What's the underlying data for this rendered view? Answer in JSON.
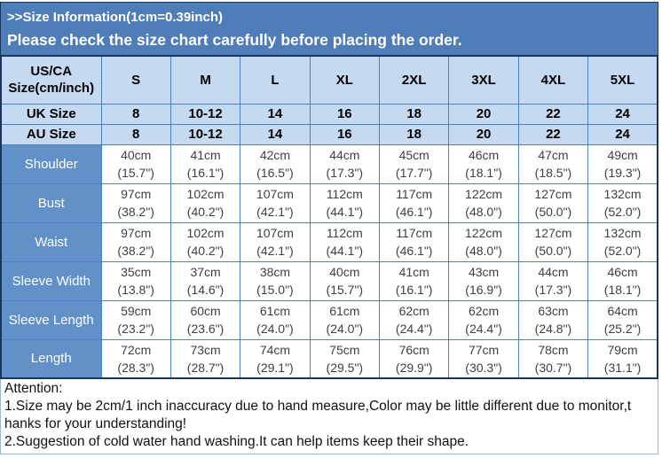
{
  "banner": {
    "line1": ">>Size Information(1cm=0.39inch)",
    "line2": "Please check the size chart carefully before placing the order.",
    "bg_color": "#4e7db7",
    "text_color": "#ffffff"
  },
  "size_table": {
    "corner_line1": "US/CA",
    "corner_line2": "Size(cm/inch)",
    "columns": [
      "S",
      "M",
      "L",
      "XL",
      "2XL",
      "3XL",
      "4XL",
      "5XL"
    ],
    "size_rows": [
      {
        "label": "UK Size",
        "values": [
          "8",
          "10-12",
          "14",
          "16",
          "18",
          "20",
          "22",
          "24"
        ]
      },
      {
        "label": "AU Size",
        "values": [
          "8",
          "10-12",
          "14",
          "16",
          "18",
          "20",
          "22",
          "24"
        ]
      }
    ],
    "measurement_rows": [
      {
        "label": "Shoulder",
        "cells": [
          {
            "cm": "40cm",
            "in": "(15.7\")"
          },
          {
            "cm": "41cm",
            "in": "(16.1\")"
          },
          {
            "cm": "42cm",
            "in": "(16.5\")"
          },
          {
            "cm": "44cm",
            "in": "(17.3\")"
          },
          {
            "cm": "45cm",
            "in": "(17.7\")"
          },
          {
            "cm": "46cm",
            "in": "(18.1\")"
          },
          {
            "cm": "47cm",
            "in": "(18.5\")"
          },
          {
            "cm": "49cm",
            "in": "(19.3\")"
          }
        ]
      },
      {
        "label": "Bust",
        "cells": [
          {
            "cm": "97cm",
            "in": "(38.2\")"
          },
          {
            "cm": "102cm",
            "in": "(40.2\")"
          },
          {
            "cm": "107cm",
            "in": "(42.1\")"
          },
          {
            "cm": "112cm",
            "in": "(44.1\")"
          },
          {
            "cm": "117cm",
            "in": "(46.1\")"
          },
          {
            "cm": "122cm",
            "in": "(48.0\")"
          },
          {
            "cm": "127cm",
            "in": "(50.0\")"
          },
          {
            "cm": "132cm",
            "in": "(52.0\")"
          }
        ]
      },
      {
        "label": "Waist",
        "cells": [
          {
            "cm": "97cm",
            "in": "(38.2\")"
          },
          {
            "cm": "102cm",
            "in": "(40.2\")"
          },
          {
            "cm": "107cm",
            "in": "(42.1\")"
          },
          {
            "cm": "112cm",
            "in": "(44.1\")"
          },
          {
            "cm": "117cm",
            "in": "(46.1\")"
          },
          {
            "cm": "122cm",
            "in": "(48.0\")"
          },
          {
            "cm": "127cm",
            "in": "(50.0\")"
          },
          {
            "cm": "132cm",
            "in": "(52.0\")"
          }
        ]
      },
      {
        "label": "Sleeve Width",
        "cells": [
          {
            "cm": "35cm",
            "in": "(13.8\")"
          },
          {
            "cm": "37cm",
            "in": "(14.6\")"
          },
          {
            "cm": "38cm",
            "in": "(15.0\")"
          },
          {
            "cm": "40cm",
            "in": "(15.7\")"
          },
          {
            "cm": "41cm",
            "in": "(16.1\")"
          },
          {
            "cm": "43cm",
            "in": "(16.9\")"
          },
          {
            "cm": "44cm",
            "in": "(17.3\")"
          },
          {
            "cm": "46cm",
            "in": "(18.1\")"
          }
        ]
      },
      {
        "label": "Sleeve Length",
        "cells": [
          {
            "cm": "59cm",
            "in": "(23.2\")"
          },
          {
            "cm": "60cm",
            "in": "(23.6\")"
          },
          {
            "cm": "61cm",
            "in": "(24.0\")"
          },
          {
            "cm": "61cm",
            "in": "(24.0\")"
          },
          {
            "cm": "62cm",
            "in": "(24.4\")"
          },
          {
            "cm": "62cm",
            "in": "(24.4\")"
          },
          {
            "cm": "63cm",
            "in": "(24.8\")"
          },
          {
            "cm": "64cm",
            "in": "(25.2\")"
          }
        ]
      },
      {
        "label": "Length",
        "cells": [
          {
            "cm": "72cm",
            "in": "(28.3\")"
          },
          {
            "cm": "73cm",
            "in": "(28.7\")"
          },
          {
            "cm": "74cm",
            "in": "(29.1\")"
          },
          {
            "cm": "75cm",
            "in": "(29.5\")"
          },
          {
            "cm": "76cm",
            "in": "(29.9\")"
          },
          {
            "cm": "77cm",
            "in": "(30.3\")"
          },
          {
            "cm": "78cm",
            "in": "(30.7\")"
          },
          {
            "cm": "79cm",
            "in": "(31.1\")"
          }
        ]
      }
    ],
    "colors": {
      "header_bg": "#c5d9f1",
      "label_bg": "#6191c8",
      "inner_border": "#4f81bd",
      "outer_border": "#17365d",
      "data_text": "#3f3f3f"
    },
    "layout": {
      "label_col_width": "113px"
    }
  },
  "attention": {
    "lines": [
      "Attention:",
      "1.Size may be 2cm/1 inch inaccuracy due to hand measure,Color may be little different due to monitor,t",
      "hanks for your understanding!",
      "2.Suggestion of cold water hand washing.It can help items keep their shape."
    ]
  }
}
